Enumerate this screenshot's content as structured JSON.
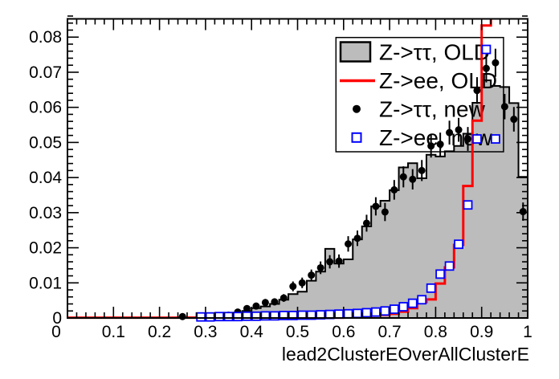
{
  "figure": {
    "background": "#ffffff",
    "frame_color": "#000000"
  },
  "legend": {
    "items": [
      {
        "label": "Z->ττ, OLD",
        "marker": "gray-filled-box",
        "color": "#bcbcbc"
      },
      {
        "label": "Z->ee, OLD",
        "marker": "red-line",
        "color": "#ff0000"
      },
      {
        "label": "Z->ττ, new",
        "marker": "black-dot",
        "color": "#000000"
      },
      {
        "label": "Z->ee, new",
        "marker": "blue-open-square",
        "color": "#0000ff"
      }
    ]
  },
  "chart_data": {
    "type": "bar",
    "subtype": "overlaid-histograms-with-points",
    "title": "",
    "xlabel": "lead2ClusterEOverAllClusterE",
    "ylabel": "",
    "xlim": [
      0,
      1
    ],
    "ylim": [
      0,
      0.0852
    ],
    "grid": false,
    "legend_position": "top-right",
    "bins": {
      "start": 0,
      "width": 0.02,
      "count": 50
    },
    "x_ticks": [
      0,
      0.1,
      0.2,
      0.3,
      0.4,
      0.5,
      0.6,
      0.7,
      0.8,
      0.9,
      1
    ],
    "x_tick_labels": [
      "0",
      "0.1",
      "0.2",
      "0.3",
      "0.4",
      "0.5",
      "0.6",
      "0.7",
      "0.8",
      "0.9",
      "1"
    ],
    "y_ticks": [
      0,
      0.01,
      0.02,
      0.03,
      0.04,
      0.05,
      0.06,
      0.07,
      0.08
    ],
    "y_tick_labels": [
      "0",
      "0.01",
      "0.02",
      "0.03",
      "0.04",
      "0.05",
      "0.06",
      "0.07",
      "0.08"
    ],
    "minor_tick_step_x": 0.02,
    "minor_tick_step_y": 0.002,
    "series": [
      {
        "name": "Z->ττ, OLD",
        "style": "filled-step-histogram",
        "fill": "#bcbcbc",
        "line": "#000000",
        "values": [
          0.0001,
          0.0001,
          0.0001,
          0.0001,
          0.0001,
          0.0001,
          0.0001,
          0.0001,
          0.0001,
          0.0001,
          0.0001,
          0.0001,
          0.0002,
          0.0002,
          0.0003,
          0.0005,
          0.0007,
          0.001,
          0.0014,
          0.002,
          0.0028,
          0.0033,
          0.004,
          0.0052,
          0.0068,
          0.0075,
          0.0106,
          0.0132,
          0.0197,
          0.0155,
          0.0167,
          0.0224,
          0.0261,
          0.0318,
          0.0334,
          0.0364,
          0.0429,
          0.0441,
          0.0398,
          0.0465,
          0.046,
          0.0475,
          0.049,
          0.0525,
          0.0613,
          0.0677,
          0.0661,
          0.0658,
          0.0612,
          0.0402
        ]
      },
      {
        "name": "Z->ee, OLD",
        "style": "line-step-histogram",
        "line": "#ff0000",
        "note": "bin 0.92-0.94 exceeds the y-axis maximum and is clipped at the top of the frame",
        "values": [
          0.0001,
          0.0001,
          0.0001,
          0.0001,
          0.0001,
          0.0001,
          0.0001,
          0.0001,
          0.0001,
          0.0001,
          0.0001,
          0.0001,
          0.0001,
          0.0001,
          0.0001,
          0.0001,
          0.0001,
          0.0001,
          0.0001,
          0.0001,
          0.0001,
          0.0001,
          0.0001,
          0.0001,
          0.0001,
          0.0001,
          0.0001,
          0.0001,
          0.0001,
          0.0001,
          0.0003,
          0.0004,
          0.0005,
          0.0007,
          0.0009,
          0.0012,
          0.0018,
          0.0028,
          0.0045,
          0.0053,
          0.0098,
          0.0144,
          0.0208,
          0.0376,
          0.0562,
          0.0833,
          0.12,
          0,
          0,
          0
        ]
      },
      {
        "name": "Z->ττ, new",
        "style": "points-with-error-bars",
        "marker": "filled-circle",
        "color": "#000000",
        "x": [
          0.25,
          0.31,
          0.35,
          0.37,
          0.39,
          0.41,
          0.43,
          0.45,
          0.47,
          0.49,
          0.51,
          0.53,
          0.55,
          0.57,
          0.59,
          0.61,
          0.63,
          0.65,
          0.67,
          0.69,
          0.71,
          0.73,
          0.75,
          0.77,
          0.79,
          0.81,
          0.83,
          0.85,
          0.87,
          0.89,
          0.91,
          0.93,
          0.95,
          0.97,
          0.99
        ],
        "y": [
          0.0004,
          0.0005,
          0.0008,
          0.0017,
          0.0027,
          0.0034,
          0.0044,
          0.0046,
          0.0057,
          0.009,
          0.01,
          0.0122,
          0.0143,
          0.016,
          0.0162,
          0.0211,
          0.0227,
          0.027,
          0.0318,
          0.0302,
          0.0365,
          0.0402,
          0.0395,
          0.042,
          0.049,
          0.0495,
          0.0528,
          0.0536,
          0.051,
          0.0648,
          0.0711,
          0.0727,
          0.0602,
          0.0566,
          0.0303
        ],
        "yerr": [
          0.0003,
          0.0003,
          0.0004,
          0.0006,
          0.0008,
          0.0009,
          0.001,
          0.001,
          0.0011,
          0.0014,
          0.0015,
          0.0016,
          0.0018,
          0.0019,
          0.0019,
          0.0022,
          0.0022,
          0.0024,
          0.0026,
          0.0026,
          0.0028,
          0.003,
          0.0029,
          0.003,
          0.0033,
          0.0033,
          0.0034,
          0.0034,
          0.0034,
          0.0038,
          0.004,
          0.004,
          0.0036,
          0.0035,
          0.0026
        ]
      },
      {
        "name": "Z->ee, new",
        "style": "points-with-error-bars",
        "marker": "open-square",
        "color": "#0000ff",
        "x": [
          0.29,
          0.31,
          0.33,
          0.35,
          0.37,
          0.39,
          0.41,
          0.43,
          0.45,
          0.47,
          0.49,
          0.51,
          0.53,
          0.55,
          0.57,
          0.59,
          0.61,
          0.63,
          0.65,
          0.67,
          0.69,
          0.71,
          0.73,
          0.75,
          0.77,
          0.79,
          0.81,
          0.83,
          0.85,
          0.87,
          0.89,
          0.91,
          0.93
        ],
        "y": [
          0.0003,
          0.0003,
          0.0004,
          0.0004,
          0.0004,
          0.0005,
          0.0005,
          0.0006,
          0.0006,
          0.0007,
          0.0007,
          0.0008,
          0.0008,
          0.0009,
          0.001,
          0.0011,
          0.0012,
          0.0013,
          0.0015,
          0.0017,
          0.002,
          0.0025,
          0.0032,
          0.0042,
          0.0052,
          0.0085,
          0.0125,
          0.0148,
          0.021,
          0.0322,
          0.051,
          0.0765,
          0.051
        ],
        "yerr": [
          0.0002,
          0.0002,
          0.0002,
          0.0002,
          0.0002,
          0.0002,
          0.0002,
          0.0002,
          0.0002,
          0.0002,
          0.0002,
          0.0002,
          0.0002,
          0.0002,
          0.0002,
          0.0002,
          0.0002,
          0.0002,
          0.0002,
          0.0002,
          0.0002,
          0.0002,
          0.0002,
          0.0004,
          0.0005,
          0.0006,
          0.0007,
          0.0008,
          0.0009,
          0.0011,
          0.0014,
          0.0017,
          0.0014
        ]
      }
    ]
  }
}
